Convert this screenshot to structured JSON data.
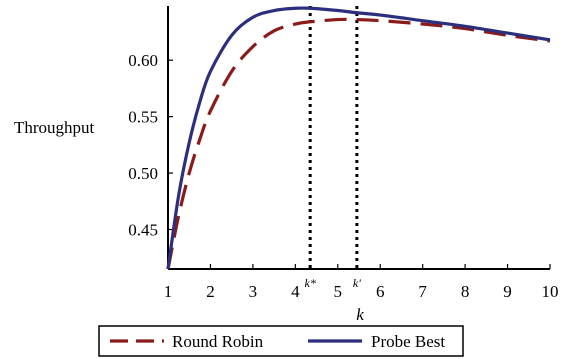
{
  "chart_data": {
    "type": "line",
    "ylabel": "Throughput",
    "xlabel": "k",
    "xlim": [
      1,
      10
    ],
    "ylim": [
      0.415,
      0.648
    ],
    "x_ticks": [
      1,
      2,
      3,
      4,
      5,
      6,
      7,
      8,
      9,
      10
    ],
    "y_ticks": [
      0.45,
      0.5,
      0.55,
      0.6
    ],
    "y_tick_labels": [
      "0.45",
      "0.50",
      "0.55",
      "0.60"
    ],
    "grid": false,
    "legend": {
      "position": "bottom"
    },
    "markers": [
      {
        "label": "k*",
        "x": 4.35
      },
      {
        "label": "k'",
        "x": 5.45
      }
    ],
    "series": [
      {
        "name": "Round Robin",
        "color": "#8b1a1a",
        "style": "dashed",
        "points": [
          [
            1.0,
            0.415
          ],
          [
            1.25,
            0.462
          ],
          [
            1.5,
            0.5
          ],
          [
            1.75,
            0.53
          ],
          [
            2.0,
            0.555
          ],
          [
            2.5,
            0.59
          ],
          [
            3.0,
            0.612
          ],
          [
            3.5,
            0.626
          ],
          [
            4.0,
            0.632
          ],
          [
            4.35,
            0.634
          ],
          [
            5.0,
            0.636
          ],
          [
            5.45,
            0.636
          ],
          [
            6.0,
            0.635
          ],
          [
            7.0,
            0.632
          ],
          [
            8.0,
            0.628
          ],
          [
            9.0,
            0.622
          ],
          [
            10.0,
            0.617
          ]
        ]
      },
      {
        "name": "Probe Best",
        "color": "#2b2f7e",
        "style": "solid",
        "points": [
          [
            1.0,
            0.415
          ],
          [
            1.25,
            0.48
          ],
          [
            1.5,
            0.527
          ],
          [
            1.75,
            0.563
          ],
          [
            2.0,
            0.59
          ],
          [
            2.5,
            0.622
          ],
          [
            3.0,
            0.638
          ],
          [
            3.5,
            0.644
          ],
          [
            4.0,
            0.646
          ],
          [
            4.35,
            0.646
          ],
          [
            5.0,
            0.644
          ],
          [
            5.45,
            0.642
          ],
          [
            6.0,
            0.64
          ],
          [
            7.0,
            0.635
          ],
          [
            8.0,
            0.63
          ],
          [
            9.0,
            0.624
          ],
          [
            10.0,
            0.618
          ]
        ]
      }
    ]
  }
}
